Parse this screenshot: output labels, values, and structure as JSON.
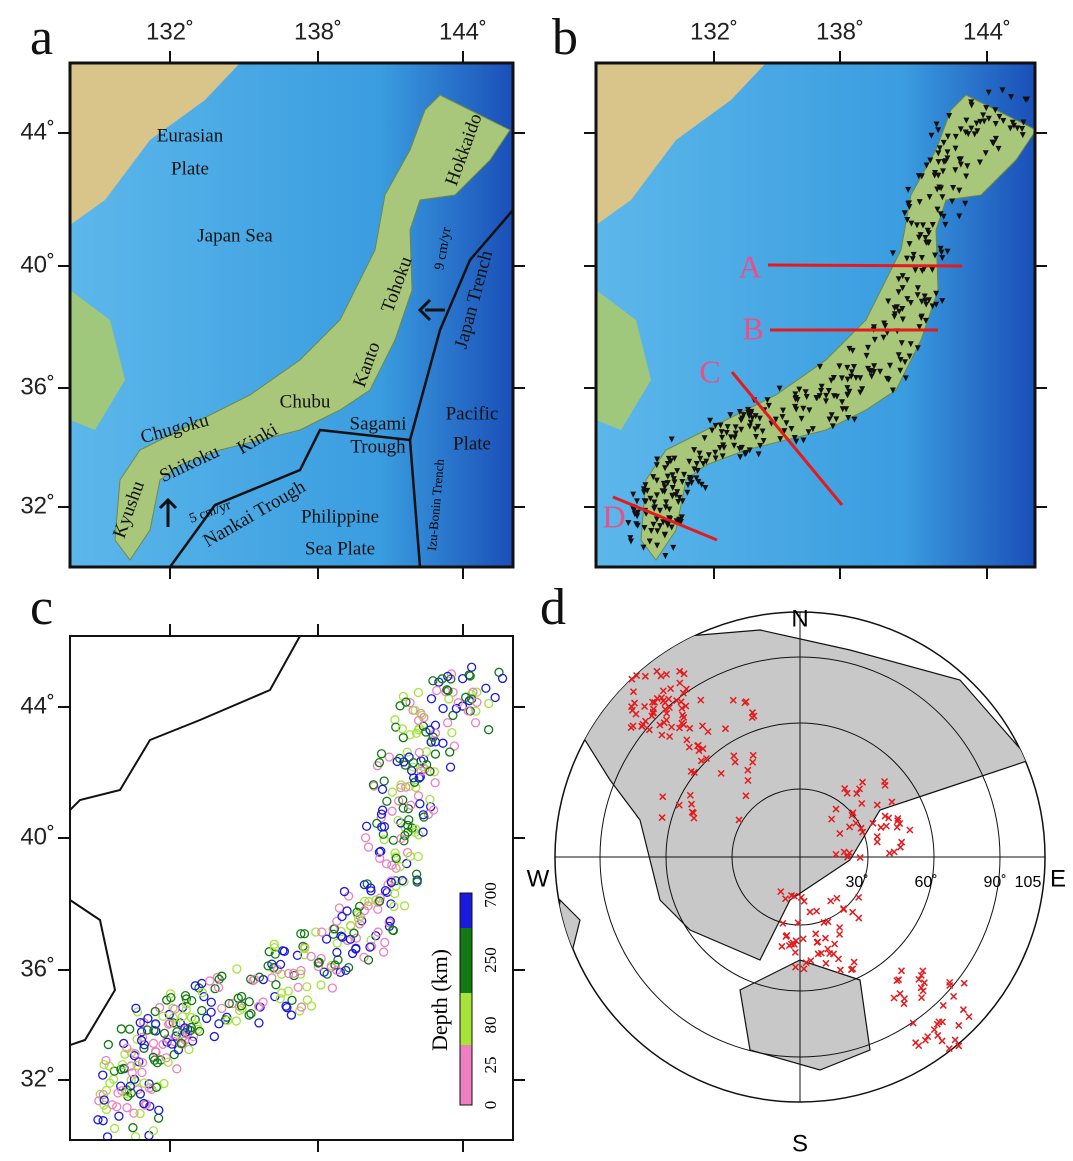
{
  "panels": [
    {
      "letter": "a",
      "lon_ticks": [
        "132˚",
        "138˚",
        "144˚"
      ],
      "lat_ticks": [
        "44˚",
        "40˚",
        "36˚",
        "32˚"
      ],
      "labels": [
        "Eurasian",
        "Plate",
        "Japan Sea",
        "Hokkaido",
        "Tohoku",
        "Kanto",
        "Chubu",
        "Chugoku",
        "Shikoku",
        "Kinki",
        "Kyushu",
        "Nankai Trough",
        "Sagami",
        "Trough",
        "Philippine",
        "Sea Plate",
        "Izu-Bonin Trench",
        "Japan Trench",
        "Pacific",
        "Plate",
        "9 cm/yr",
        "5 cm/yr"
      ]
    },
    {
      "letter": "b",
      "lon_ticks": [
        "132˚",
        "138˚",
        "144˚"
      ],
      "profiles": [
        "A",
        "B",
        "C",
        "D"
      ]
    },
    {
      "letter": "c",
      "lat_ticks": [
        "44˚",
        "40˚",
        "36˚",
        "32˚"
      ],
      "legend_title": "Depth (km)",
      "legend_ticks": [
        "0",
        "25",
        "80",
        "250",
        "700"
      ]
    },
    {
      "letter": "d",
      "directions": [
        "N",
        "S",
        "W",
        "E"
      ],
      "rings": [
        "30˚",
        "60˚",
        "90˚",
        "105"
      ]
    }
  ]
}
